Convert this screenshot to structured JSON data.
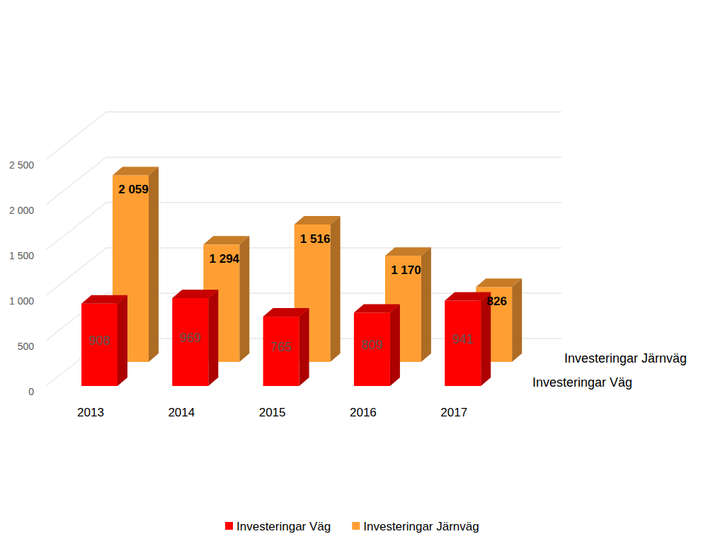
{
  "chart_data": {
    "type": "bar",
    "categories": [
      "2013",
      "2014",
      "2015",
      "2016",
      "2017"
    ],
    "series": [
      {
        "name": "Investeringar Väg",
        "color": "#ff0000",
        "values": [
          908,
          969,
          765,
          809,
          941
        ]
      },
      {
        "name": "Investeringar Järnväg",
        "color": "#ff9f33",
        "values": [
          2059,
          1294,
          1516,
          1170,
          826
        ],
        "value_labels": [
          "2 059",
          "1 294",
          "1 516",
          "1 170",
          "826"
        ]
      }
    ],
    "ylim": [
      0,
      2500
    ],
    "yticks": [
      0,
      500,
      {
        "value": 1000,
        "label": "1 000"
      },
      {
        "value": 1500,
        "label": "1 500"
      },
      {
        "value": 2000,
        "label": "2 000"
      },
      {
        "value": 2500,
        "label": "2 500"
      }
    ],
    "grid": true,
    "legend": "bottom",
    "data_labels": true
  }
}
